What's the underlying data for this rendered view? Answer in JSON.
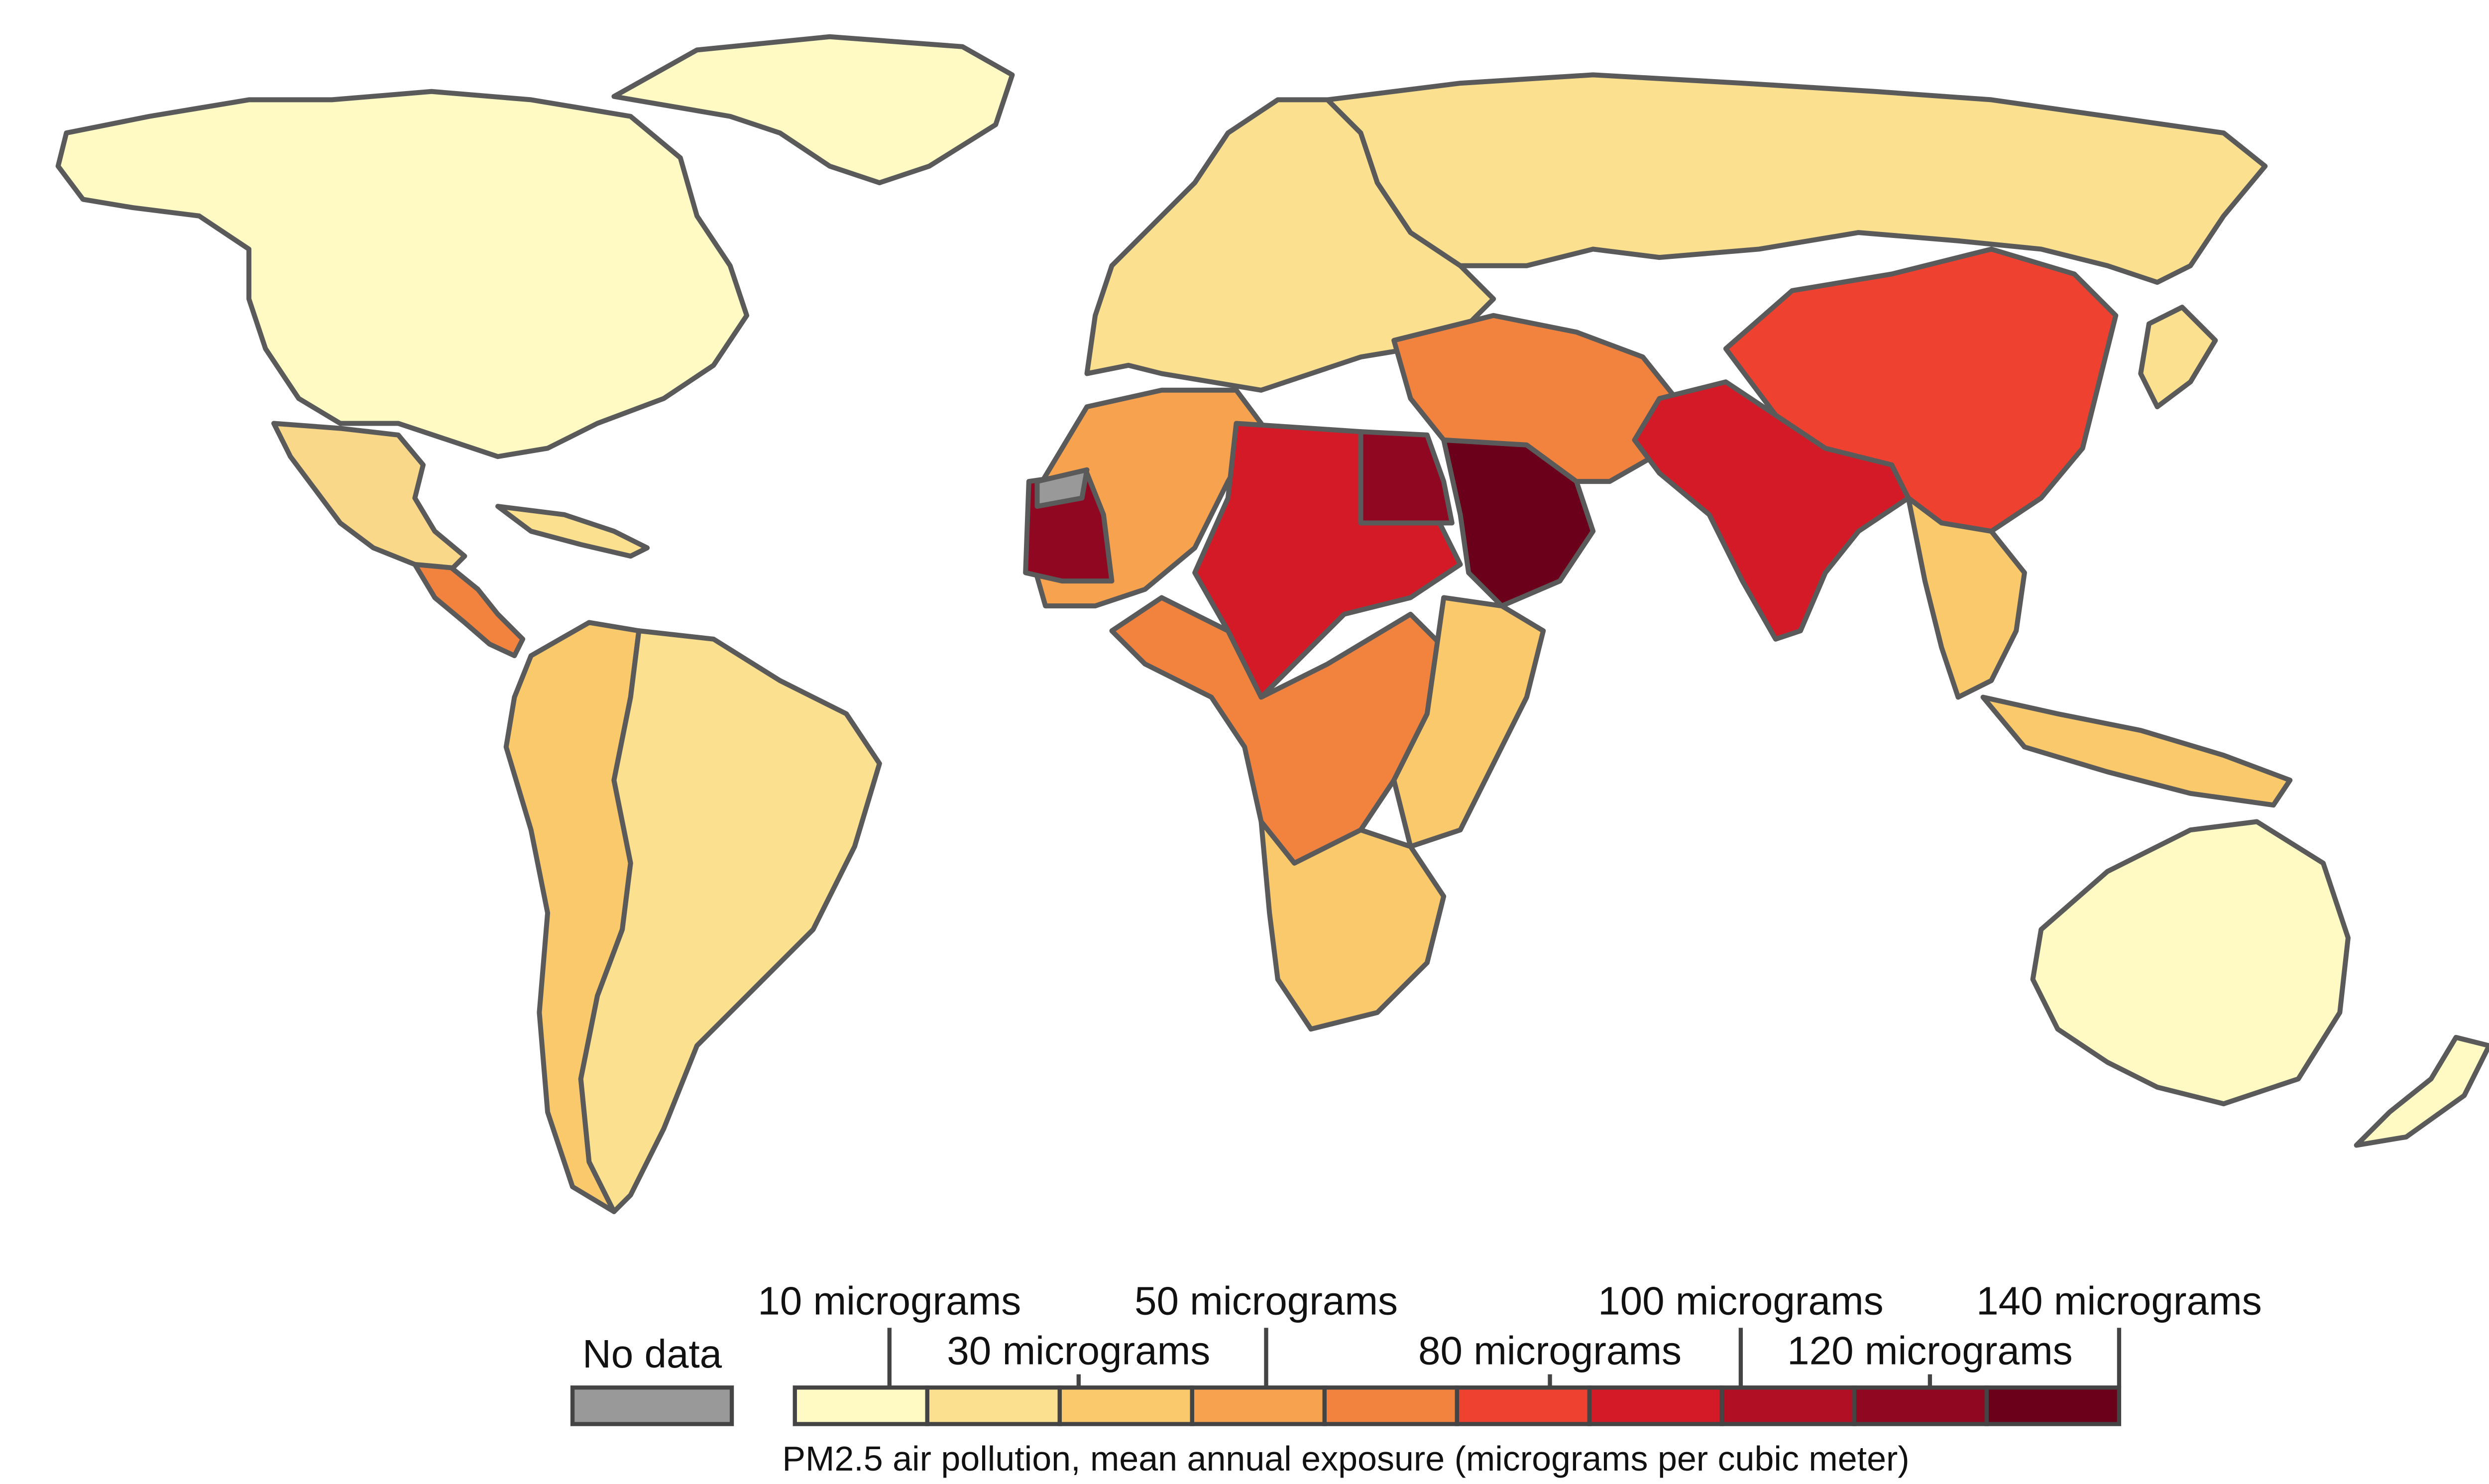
{
  "legend": {
    "no_data_label": "No data",
    "no_data_color": "#999999",
    "labels_top": [
      "10 micrograms",
      "50 micrograms",
      "100 micrograms",
      "140 micrograms"
    ],
    "labels_bottom": [
      "30 micrograms",
      "80 micrograms",
      "120 micrograms"
    ],
    "title": "PM2.5 air pollution, mean annual exposure (micrograms per cubic meter)",
    "colors": [
      "#fff9c4",
      "#fbe08f",
      "#f9c96c",
      "#f6a24e",
      "#f2833f",
      "#ee4130",
      "#d41a26",
      "#b10f24",
      "#8f0721",
      "#6b001a"
    ]
  },
  "regions": {
    "north_america": "#fff9c4",
    "greenland": "#fff9c4",
    "mexico": "#f9d889",
    "central_america": "#f2833f",
    "caribbean": "#fbe08f",
    "south_america": "#fbe08f",
    "south_america_west": "#f9c96c",
    "europe": "#fbe08f",
    "russia": "#fbe08f",
    "north_africa": "#f6a24e",
    "sahel": "#d41a26",
    "mauritania": "#8f0721",
    "egypt": "#8f0721",
    "arabia": "#6b001a",
    "central_africa": "#f2833f",
    "southern_africa": "#f9c96c",
    "east_africa": "#f9c96c",
    "middle_east": "#f2833f",
    "south_asia": "#d41a26",
    "china": "#ee4130",
    "southeast_asia": "#f9c96c",
    "japan": "#fbe08f",
    "oceania": "#fff9c4",
    "no_data": "#999999"
  }
}
